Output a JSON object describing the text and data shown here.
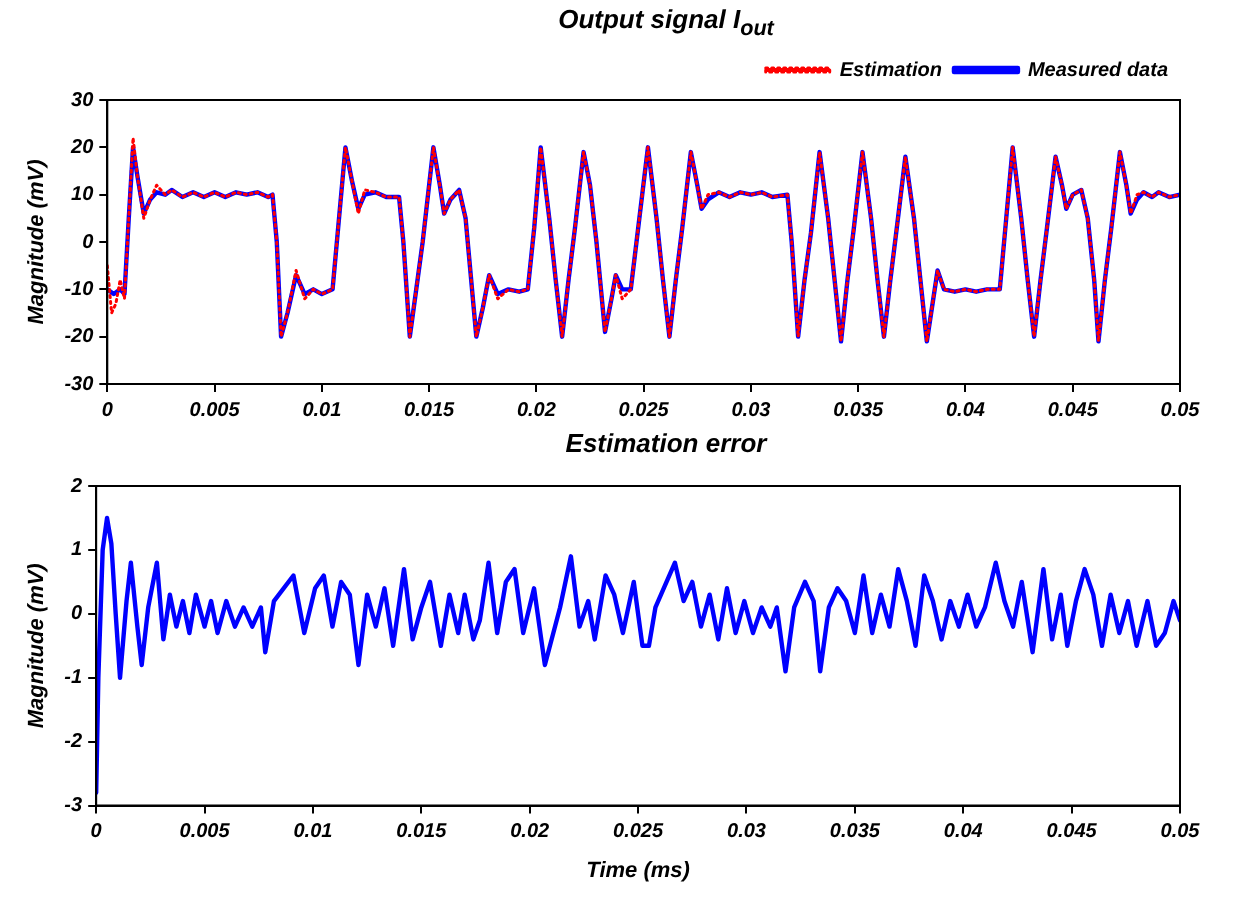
{
  "chart_data": [
    {
      "type": "line",
      "title": "Output signal I$_{out}$",
      "ylabel": "Magnitude (mV)",
      "xlim": [
        0,
        0.05
      ],
      "xticks": [
        0,
        0.005,
        0.01,
        0.015,
        0.02,
        0.025,
        0.03,
        0.035,
        0.04,
        0.045,
        0.05
      ],
      "ylim": [
        -30,
        30
      ],
      "yticks": [
        -30,
        -20,
        -10,
        0,
        10,
        20,
        30
      ],
      "legend": "top right",
      "marker": "none",
      "series": [
        {
          "name": "Measured data",
          "color": "#0000ff",
          "line_style": "solid",
          "x": [
            0,
            0.0003,
            0.0006,
            0.0008,
            0.001,
            0.0012,
            0.0014,
            0.0017,
            0.002,
            0.0023,
            0.0027,
            0.003,
            0.0035,
            0.004,
            0.0045,
            0.005,
            0.0055,
            0.006,
            0.0065,
            0.007,
            0.0075,
            0.0077,
            0.0079,
            0.0081,
            0.0084,
            0.0088,
            0.0092,
            0.0096,
            0.01,
            0.0105,
            0.0108,
            0.0111,
            0.0114,
            0.0117,
            0.012,
            0.0125,
            0.013,
            0.0136,
            0.0138,
            0.0141,
            0.0144,
            0.0147,
            0.0152,
            0.0155,
            0.0157,
            0.016,
            0.0164,
            0.0167,
            0.0172,
            0.0175,
            0.0178,
            0.0182,
            0.0187,
            0.0192,
            0.0196,
            0.0199,
            0.0202,
            0.0206,
            0.0209,
            0.0212,
            0.0215,
            0.0218,
            0.0222,
            0.0225,
            0.0228,
            0.0232,
            0.0235,
            0.0237,
            0.024,
            0.0244,
            0.0248,
            0.0252,
            0.0256,
            0.0259,
            0.0262,
            0.0265,
            0.0268,
            0.0272,
            0.0275,
            0.0277,
            0.028,
            0.0285,
            0.029,
            0.0295,
            0.03,
            0.0305,
            0.031,
            0.0317,
            0.0319,
            0.0322,
            0.0325,
            0.0328,
            0.0332,
            0.0336,
            0.0339,
            0.0342,
            0.0345,
            0.0348,
            0.0352,
            0.0356,
            0.0359,
            0.0362,
            0.0365,
            0.0368,
            0.0372,
            0.0376,
            0.0379,
            0.0382,
            0.0385,
            0.0387,
            0.039,
            0.0395,
            0.04,
            0.0405,
            0.041,
            0.0416,
            0.0419,
            0.0422,
            0.0426,
            0.0429,
            0.0432,
            0.0435,
            0.0438,
            0.0442,
            0.0445,
            0.0447,
            0.045,
            0.0454,
            0.0457,
            0.046,
            0.0462,
            0.0465,
            0.0468,
            0.0472,
            0.0475,
            0.0477,
            0.048,
            0.0483,
            0.0487,
            0.049,
            0.0495,
            0.05
          ],
          "values": [
            -10,
            -11,
            -10,
            -11,
            5,
            20,
            14,
            6,
            9,
            10.5,
            10,
            11,
            9.5,
            10.5,
            9.5,
            10.5,
            9.5,
            10.5,
            10,
            10.5,
            9.5,
            10,
            0,
            -20,
            -15,
            -7,
            -11,
            -10,
            -11,
            -10,
            5,
            20,
            13,
            7,
            10,
            10.5,
            9.5,
            9.5,
            0,
            -20,
            -10,
            0,
            20,
            12,
            6,
            9,
            11,
            5,
            -20,
            -14,
            -7,
            -11,
            -10,
            -10.5,
            -10,
            3,
            20,
            5,
            -8,
            -20,
            -8,
            3,
            19,
            12,
            0,
            -19,
            -12,
            -7,
            -10,
            -10,
            5,
            20,
            5,
            -8,
            -20,
            -8,
            3,
            19,
            12,
            7,
            9,
            10.5,
            9.5,
            10.5,
            10,
            10.5,
            9.5,
            10,
            0,
            -20,
            -8,
            2,
            19,
            5,
            -8,
            -21,
            -8,
            3,
            19,
            5,
            -8,
            -20,
            -8,
            3,
            18,
            5,
            -8,
            -21,
            -12,
            -6,
            -10,
            -10.5,
            -10,
            -10.5,
            -10,
            -10,
            5,
            20,
            5,
            -8,
            -20,
            -8,
            3,
            18,
            12,
            7,
            10,
            11,
            5,
            -8,
            -21,
            -8,
            3,
            19,
            12,
            6,
            9,
            10.5,
            9.5,
            10.5,
            9.5,
            10
          ]
        },
        {
          "name": "Estimation",
          "color": "#ff0000",
          "line_style": "dotted",
          "x": [
            0,
            0.0002,
            0.0004,
            0.0006,
            0.0008,
            0.001,
            0.0012,
            0.0014,
            0.0017,
            0.002,
            0.0023,
            0.0027,
            0.003,
            0.0035,
            0.004,
            0.0045,
            0.005,
            0.0055,
            0.006,
            0.0065,
            0.007,
            0.0075,
            0.0077,
            0.0079,
            0.0081,
            0.0084,
            0.0088,
            0.0092,
            0.0096,
            0.01,
            0.0105,
            0.0108,
            0.0111,
            0.0114,
            0.0117,
            0.012,
            0.0125,
            0.013,
            0.0136,
            0.0138,
            0.0141,
            0.0144,
            0.0147,
            0.0152,
            0.0155,
            0.0157,
            0.016,
            0.0164,
            0.0167,
            0.0172,
            0.0175,
            0.0178,
            0.0182,
            0.0187,
            0.0192,
            0.0196,
            0.0199,
            0.0202,
            0.0206,
            0.0209,
            0.0212,
            0.0215,
            0.0218,
            0.0222,
            0.0225,
            0.0228,
            0.0232,
            0.0235,
            0.0237,
            0.024,
            0.0244,
            0.0248,
            0.0252,
            0.0256,
            0.0259,
            0.0262,
            0.0265,
            0.0268,
            0.0272,
            0.0275,
            0.0277,
            0.028,
            0.0285,
            0.029,
            0.0295,
            0.03,
            0.0305,
            0.031,
            0.0317,
            0.0319,
            0.0322,
            0.0325,
            0.0328,
            0.0332,
            0.0336,
            0.0339,
            0.0342,
            0.0345,
            0.0348,
            0.0352,
            0.0356,
            0.0359,
            0.0362,
            0.0365,
            0.0368,
            0.0372,
            0.0376,
            0.0379,
            0.0382,
            0.0385,
            0.0387,
            0.039,
            0.0395,
            0.04,
            0.0405,
            0.041,
            0.0416,
            0.0419,
            0.0422,
            0.0426,
            0.0429,
            0.0432,
            0.0435,
            0.0438,
            0.0442,
            0.0445,
            0.0447,
            0.045,
            0.0454,
            0.0457,
            0.046,
            0.0462,
            0.0465,
            0.0468,
            0.0472,
            0.0475,
            0.0477,
            0.048,
            0.0483,
            0.0487,
            0.049,
            0.0495,
            0.05
          ],
          "values": [
            -5,
            -15,
            -13,
            -8,
            -12,
            5,
            22,
            14,
            5,
            9,
            12,
            10,
            11,
            9.5,
            10.5,
            9.5,
            10.5,
            9.5,
            10.5,
            10,
            10.5,
            9.5,
            10,
            0,
            -20,
            -15,
            -6,
            -12,
            -10,
            -11,
            -10,
            5,
            20,
            13,
            6,
            11,
            10.5,
            9.5,
            9.5,
            0,
            -20,
            -10,
            0,
            20,
            12,
            6,
            9,
            11,
            5,
            -20,
            -14,
            -7,
            -12,
            -10,
            -10.5,
            -10,
            3,
            20,
            5,
            -8,
            -20,
            -8,
            3,
            19,
            12,
            0,
            -19,
            -12,
            -7,
            -12,
            -10,
            5,
            20,
            5,
            -8,
            -20,
            -8,
            3,
            19,
            12,
            7,
            10,
            10.5,
            9.5,
            10.5,
            10,
            10.5,
            9.5,
            10,
            0,
            -20,
            -8,
            2,
            19,
            5,
            -8,
            -21,
            -8,
            3,
            19,
            5,
            -8,
            -20,
            -8,
            3,
            18,
            5,
            -8,
            -21,
            -12,
            -6,
            -10,
            -10.5,
            -10,
            -10.5,
            -10,
            -10,
            5,
            20,
            5,
            -8,
            -20,
            -8,
            3,
            18,
            12,
            7,
            10,
            11,
            5,
            -8,
            -21,
            -8,
            3,
            19,
            12,
            6,
            10,
            10.5,
            9.5,
            10.5,
            9.5,
            10
          ]
        }
      ]
    },
    {
      "type": "line",
      "title": "Estimation error",
      "xlabel": "Time (ms)",
      "ylabel": "Magnitude (mV)",
      "xlim": [
        0,
        0.05
      ],
      "xticks": [
        0,
        0.005,
        0.01,
        0.015,
        0.02,
        0.025,
        0.03,
        0.035,
        0.04,
        0.045,
        0.05
      ],
      "ylim": [
        -3,
        2
      ],
      "yticks": [
        -3,
        -2,
        -1,
        0,
        1,
        2
      ],
      "marker": "none",
      "series": [
        {
          "color": "#0000ff",
          "line_style": "solid",
          "x": [
            0,
            0.0001,
            0.0003,
            0.0005,
            0.0007,
            0.0009,
            0.0011,
            0.0014,
            0.0016,
            0.0019,
            0.0021,
            0.0024,
            0.0028,
            0.0031,
            0.0034,
            0.0037,
            0.004,
            0.0043,
            0.0046,
            0.005,
            0.0053,
            0.0056,
            0.006,
            0.0064,
            0.0068,
            0.0072,
            0.0076,
            0.0078,
            0.0082,
            0.0091,
            0.0096,
            0.0101,
            0.0105,
            0.0109,
            0.0113,
            0.0117,
            0.0121,
            0.0125,
            0.0129,
            0.0133,
            0.0137,
            0.0142,
            0.0146,
            0.015,
            0.0154,
            0.0159,
            0.0163,
            0.0167,
            0.017,
            0.0174,
            0.0177,
            0.0181,
            0.0185,
            0.0189,
            0.0193,
            0.0197,
            0.0202,
            0.0207,
            0.0214,
            0.0219,
            0.0223,
            0.0227,
            0.023,
            0.0235,
            0.0239,
            0.0243,
            0.0248,
            0.0252,
            0.0255,
            0.0258,
            0.0267,
            0.0271,
            0.0275,
            0.0279,
            0.0283,
            0.0287,
            0.0291,
            0.0295,
            0.0299,
            0.0303,
            0.0307,
            0.0311,
            0.0314,
            0.0318,
            0.0322,
            0.0327,
            0.0331,
            0.0334,
            0.0338,
            0.0342,
            0.0346,
            0.035,
            0.0354,
            0.0358,
            0.0362,
            0.0366,
            0.037,
            0.0374,
            0.0378,
            0.0382,
            0.0386,
            0.039,
            0.0394,
            0.0398,
            0.0402,
            0.0406,
            0.041,
            0.0415,
            0.0419,
            0.0423,
            0.0427,
            0.0432,
            0.0437,
            0.0441,
            0.0445,
            0.0448,
            0.0452,
            0.0456,
            0.046,
            0.0464,
            0.0468,
            0.0472,
            0.0476,
            0.048,
            0.0485,
            0.0489,
            0.0493,
            0.0497,
            0.05
          ],
          "values": [
            -2.8,
            -1,
            1,
            1.5,
            1.1,
            0,
            -1,
            0.2,
            0.8,
            -0.2,
            -0.8,
            0.1,
            0.8,
            -0.4,
            0.3,
            -0.2,
            0.2,
            -0.3,
            0.3,
            -0.2,
            0.2,
            -0.3,
            0.2,
            -0.2,
            0.1,
            -0.2,
            0.1,
            -0.6,
            0.2,
            0.6,
            -0.3,
            0.4,
            0.6,
            -0.2,
            0.5,
            0.3,
            -0.8,
            0.3,
            -0.2,
            0.4,
            -0.5,
            0.7,
            -0.4,
            0.1,
            0.5,
            -0.5,
            0.3,
            -0.3,
            0.3,
            -0.4,
            -0.1,
            0.8,
            -0.3,
            0.5,
            0.7,
            -0.3,
            0.4,
            -0.8,
            0.1,
            0.9,
            -0.2,
            0.2,
            -0.4,
            0.6,
            0.3,
            -0.3,
            0.5,
            -0.5,
            -0.5,
            0.1,
            0.8,
            0.2,
            0.5,
            -0.2,
            0.3,
            -0.4,
            0.4,
            -0.3,
            0.2,
            -0.3,
            0.1,
            -0.2,
            0.1,
            -0.9,
            0.1,
            0.5,
            0.2,
            -0.9,
            0.1,
            0.4,
            0.2,
            -0.3,
            0.6,
            -0.3,
            0.3,
            -0.2,
            0.7,
            0.2,
            -0.5,
            0.6,
            0.2,
            -0.4,
            0.2,
            -0.2,
            0.3,
            -0.2,
            0.1,
            0.8,
            0.2,
            -0.2,
            0.5,
            -0.6,
            0.7,
            -0.4,
            0.3,
            -0.5,
            0.2,
            0.7,
            0.3,
            -0.5,
            0.3,
            -0.3,
            0.2,
            -0.5,
            0.2,
            -0.5,
            -0.3,
            0.2,
            -0.1
          ]
        }
      ]
    }
  ]
}
